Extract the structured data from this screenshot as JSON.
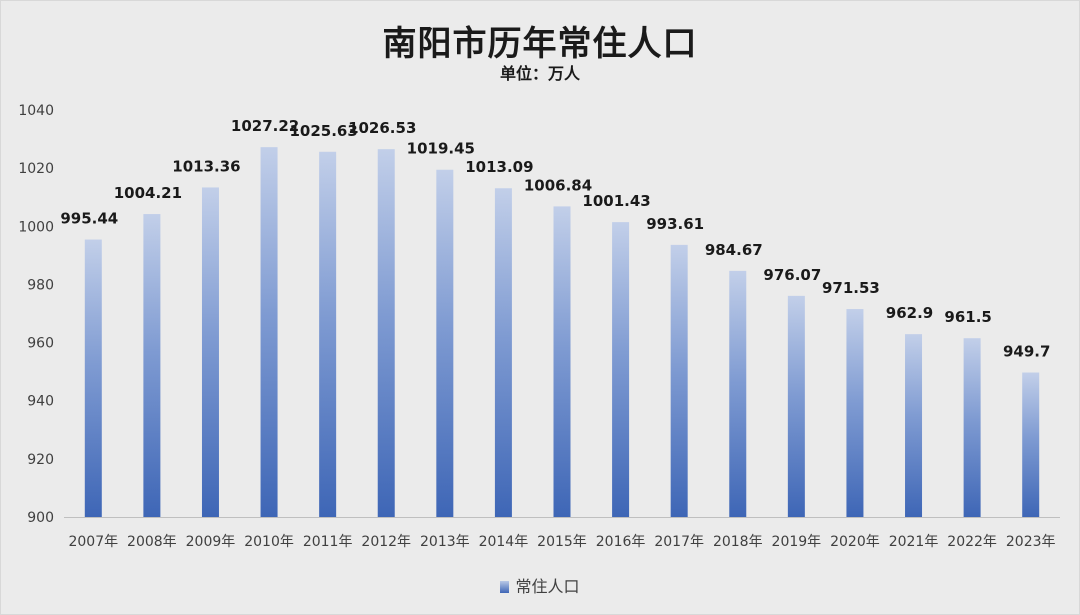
{
  "chart_data": {
    "type": "bar",
    "title": "南阳市历年常住人口",
    "subtitle": "单位：万人",
    "categories": [
      "2007年",
      "2008年",
      "2009年",
      "2010年",
      "2011年",
      "2012年",
      "2013年",
      "2014年",
      "2015年",
      "2016年",
      "2017年",
      "2018年",
      "2019年",
      "2020年",
      "2021年",
      "2022年",
      "2023年"
    ],
    "series": [
      {
        "name": "常住人口",
        "values": [
          995.44,
          1004.21,
          1013.36,
          1027.22,
          1025.63,
          1026.53,
          1019.45,
          1013.09,
          1006.84,
          1001.43,
          993.61,
          984.67,
          976.07,
          971.53,
          962.9,
          961.5,
          949.7
        ],
        "labels": [
          "995.44",
          "1004.21",
          "1013.36",
          "1027.22",
          "1025.63",
          "1026.53",
          "1019.45",
          "1013.09",
          "1006.84",
          "1001.43",
          "993.61",
          "984.67",
          "976.07",
          "971.53",
          "962.9",
          "961.5",
          "949.7"
        ]
      }
    ],
    "ylim": [
      900,
      1040
    ],
    "yticks": [
      "900",
      "920",
      "940",
      "960",
      "980",
      "1000",
      "1020",
      "1040"
    ],
    "grid": false,
    "legend_position": "bottom",
    "colors": {
      "bar_bottom": "#3e66b6",
      "bar_top": "#c2cfe9"
    }
  }
}
